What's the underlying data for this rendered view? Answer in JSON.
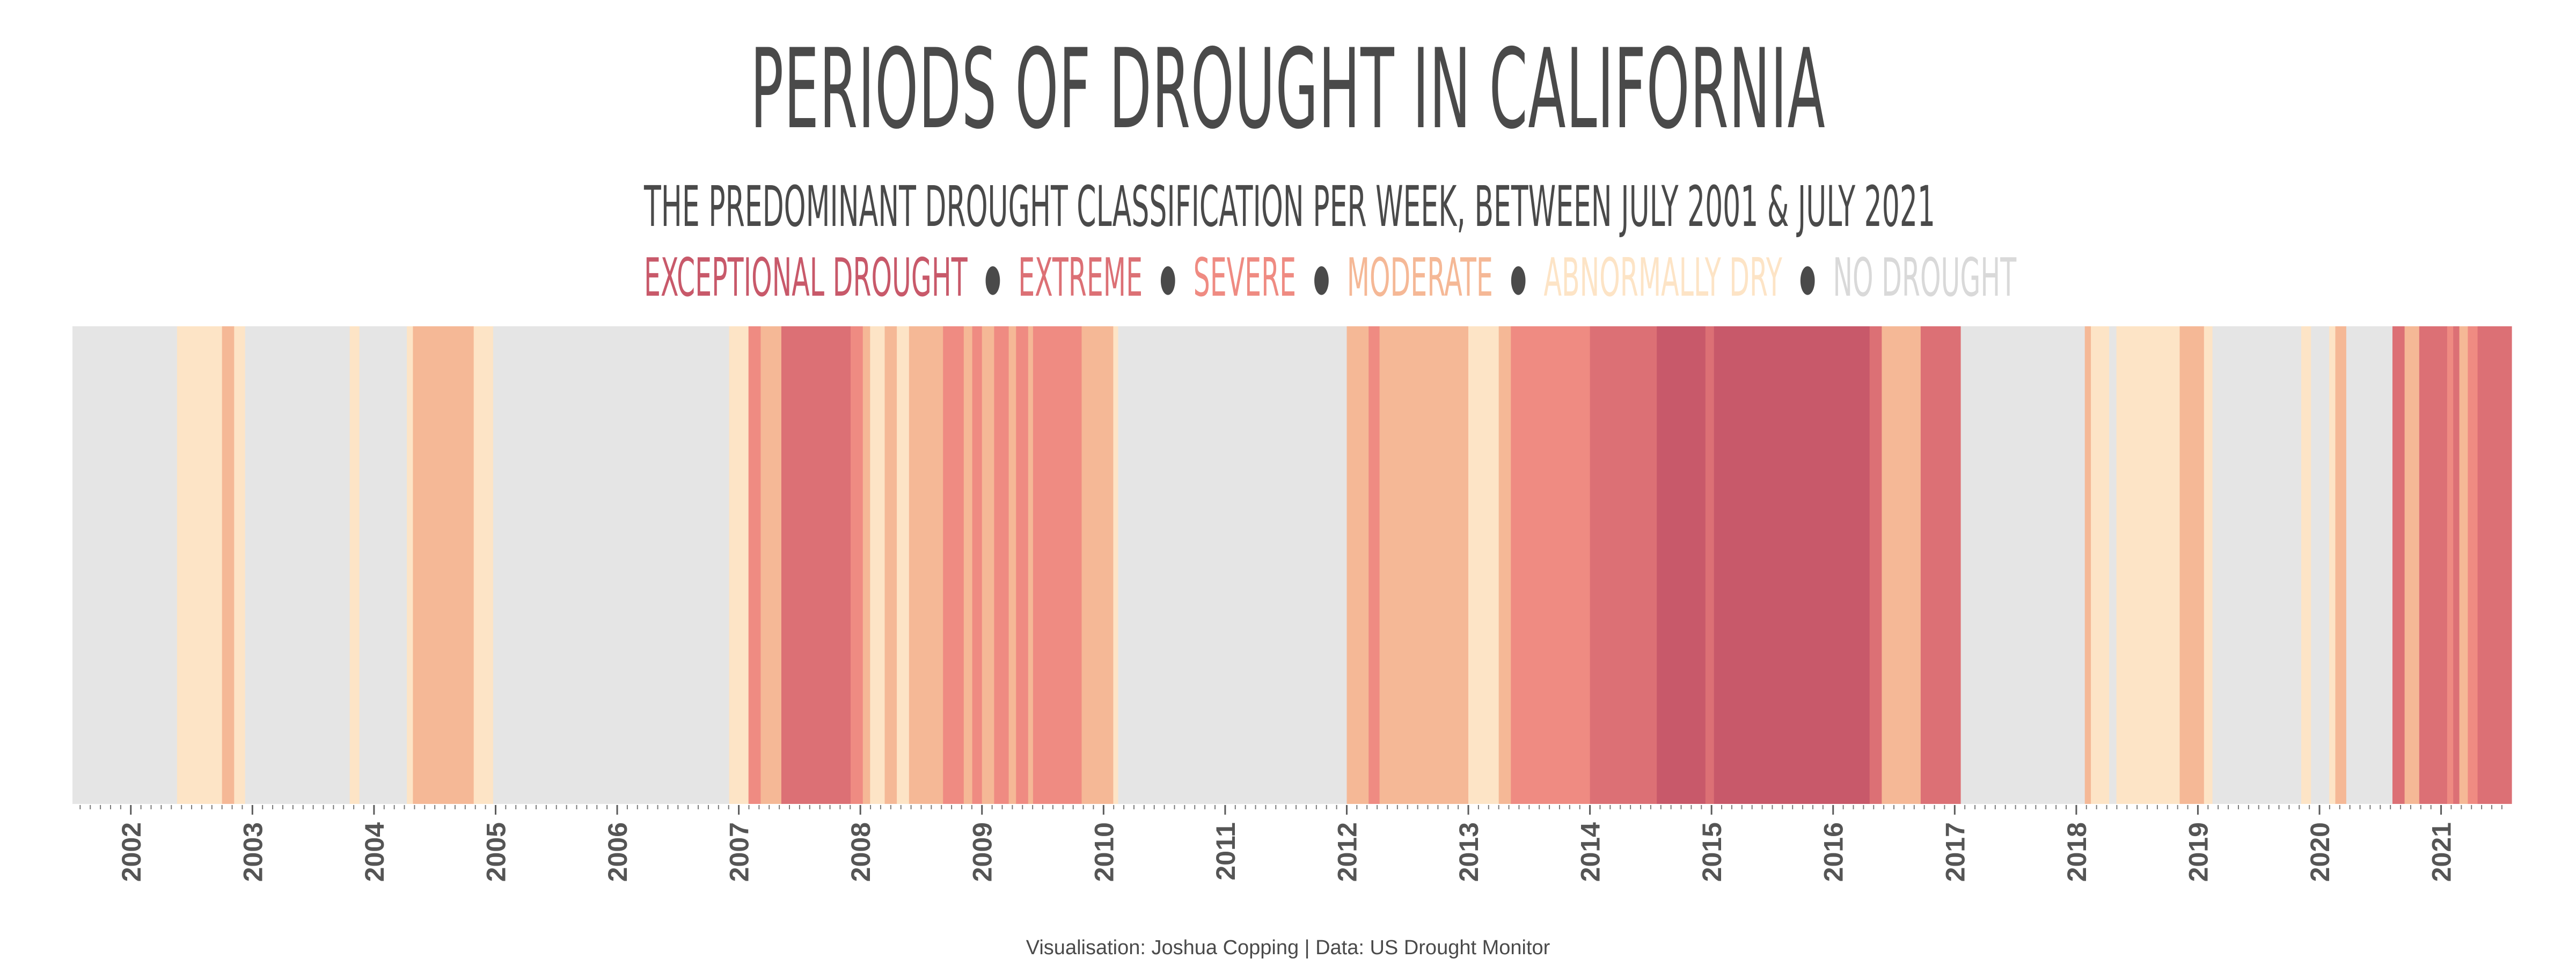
{
  "colors": {
    "exceptional": "#c8596a",
    "extreme": "#dc7075",
    "severe": "#ef8b82",
    "moderate": "#f5b896",
    "abnormally_dry": "#fde4c6",
    "no_drought": "#e5e5e5",
    "text": "#4a4a4a"
  },
  "chart_data": {
    "type": "heatmap",
    "title": "PERIODS OF DROUGHT IN CALIFORNIA",
    "subtitle": "THE PREDOMINANT DROUGHT CLASSIFICATION PER WEEK, BETWEEN JULY 2001 & JULY 2021",
    "legend": [
      {
        "key": "exceptional",
        "label": "EXCEPTIONAL DROUGHT"
      },
      {
        "key": "extreme",
        "label": "EXTREME"
      },
      {
        "key": "severe",
        "label": "SEVERE"
      },
      {
        "key": "moderate",
        "label": "MODERATE"
      },
      {
        "key": "abnormally_dry",
        "label": "ABNORMALLY DRY"
      },
      {
        "key": "no_drought",
        "label": "NO DROUGHT"
      }
    ],
    "legend_position": "top",
    "x_range": [
      "2001-07",
      "2021-07"
    ],
    "x_ticks": [
      "2002",
      "2003",
      "2004",
      "2005",
      "2006",
      "2007",
      "2008",
      "2009",
      "2010",
      "2011",
      "2012",
      "2013",
      "2014",
      "2015",
      "2016",
      "2017",
      "2018",
      "2019",
      "2020",
      "2021"
    ],
    "periods": [
      {
        "start": 2001.52,
        "end": 2002.38,
        "cls": "no_drought"
      },
      {
        "start": 2002.38,
        "end": 2002.75,
        "cls": "abnormally_dry"
      },
      {
        "start": 2002.75,
        "end": 2002.85,
        "cls": "moderate"
      },
      {
        "start": 2002.85,
        "end": 2002.94,
        "cls": "abnormally_dry"
      },
      {
        "start": 2002.94,
        "end": 2003.8,
        "cls": "no_drought"
      },
      {
        "start": 2003.8,
        "end": 2003.88,
        "cls": "abnormally_dry"
      },
      {
        "start": 2003.88,
        "end": 2004.27,
        "cls": "no_drought"
      },
      {
        "start": 2004.27,
        "end": 2004.32,
        "cls": "abnormally_dry"
      },
      {
        "start": 2004.32,
        "end": 2004.82,
        "cls": "moderate"
      },
      {
        "start": 2004.82,
        "end": 2004.98,
        "cls": "abnormally_dry"
      },
      {
        "start": 2004.98,
        "end": 2006.92,
        "cls": "no_drought"
      },
      {
        "start": 2006.92,
        "end": 2007.08,
        "cls": "abnormally_dry"
      },
      {
        "start": 2007.08,
        "end": 2007.18,
        "cls": "severe"
      },
      {
        "start": 2007.18,
        "end": 2007.35,
        "cls": "moderate"
      },
      {
        "start": 2007.35,
        "end": 2007.92,
        "cls": "extreme"
      },
      {
        "start": 2007.92,
        "end": 2008.02,
        "cls": "severe"
      },
      {
        "start": 2008.02,
        "end": 2008.08,
        "cls": "moderate"
      },
      {
        "start": 2008.08,
        "end": 2008.2,
        "cls": "abnormally_dry"
      },
      {
        "start": 2008.2,
        "end": 2008.3,
        "cls": "moderate"
      },
      {
        "start": 2008.3,
        "end": 2008.4,
        "cls": "abnormally_dry"
      },
      {
        "start": 2008.4,
        "end": 2008.68,
        "cls": "moderate"
      },
      {
        "start": 2008.68,
        "end": 2008.85,
        "cls": "severe"
      },
      {
        "start": 2008.85,
        "end": 2008.92,
        "cls": "moderate"
      },
      {
        "start": 2008.92,
        "end": 2009.0,
        "cls": "severe"
      },
      {
        "start": 2009.0,
        "end": 2009.1,
        "cls": "moderate"
      },
      {
        "start": 2009.1,
        "end": 2009.22,
        "cls": "severe"
      },
      {
        "start": 2009.22,
        "end": 2009.28,
        "cls": "moderate"
      },
      {
        "start": 2009.28,
        "end": 2009.38,
        "cls": "severe"
      },
      {
        "start": 2009.38,
        "end": 2009.42,
        "cls": "moderate"
      },
      {
        "start": 2009.42,
        "end": 2009.82,
        "cls": "severe"
      },
      {
        "start": 2009.82,
        "end": 2010.08,
        "cls": "moderate"
      },
      {
        "start": 2010.08,
        "end": 2010.12,
        "cls": "abnormally_dry"
      },
      {
        "start": 2010.12,
        "end": 2012.0,
        "cls": "no_drought"
      },
      {
        "start": 2012.0,
        "end": 2012.18,
        "cls": "moderate"
      },
      {
        "start": 2012.18,
        "end": 2012.27,
        "cls": "severe"
      },
      {
        "start": 2012.27,
        "end": 2013.0,
        "cls": "moderate"
      },
      {
        "start": 2013.0,
        "end": 2013.1,
        "cls": "abnormally_dry"
      },
      {
        "start": 2013.1,
        "end": 2013.25,
        "cls": "abnormally_dry"
      },
      {
        "start": 2013.25,
        "end": 2013.35,
        "cls": "moderate"
      },
      {
        "start": 2013.35,
        "end": 2014.0,
        "cls": "severe"
      },
      {
        "start": 2014.0,
        "end": 2014.55,
        "cls": "extreme"
      },
      {
        "start": 2014.55,
        "end": 2014.95,
        "cls": "exceptional"
      },
      {
        "start": 2014.95,
        "end": 2015.02,
        "cls": "extreme"
      },
      {
        "start": 2015.02,
        "end": 2016.3,
        "cls": "exceptional"
      },
      {
        "start": 2016.3,
        "end": 2016.4,
        "cls": "extreme"
      },
      {
        "start": 2016.4,
        "end": 2016.72,
        "cls": "moderate"
      },
      {
        "start": 2016.72,
        "end": 2017.05,
        "cls": "extreme"
      },
      {
        "start": 2017.05,
        "end": 2018.07,
        "cls": "no_drought"
      },
      {
        "start": 2018.07,
        "end": 2018.12,
        "cls": "moderate"
      },
      {
        "start": 2018.12,
        "end": 2018.27,
        "cls": "abnormally_dry"
      },
      {
        "start": 2018.27,
        "end": 2018.33,
        "cls": "no_drought"
      },
      {
        "start": 2018.33,
        "end": 2018.85,
        "cls": "abnormally_dry"
      },
      {
        "start": 2018.85,
        "end": 2019.05,
        "cls": "moderate"
      },
      {
        "start": 2019.05,
        "end": 2019.12,
        "cls": "abnormally_dry"
      },
      {
        "start": 2019.12,
        "end": 2019.85,
        "cls": "no_drought"
      },
      {
        "start": 2019.85,
        "end": 2019.93,
        "cls": "abnormally_dry"
      },
      {
        "start": 2019.93,
        "end": 2020.08,
        "cls": "no_drought"
      },
      {
        "start": 2020.08,
        "end": 2020.13,
        "cls": "abnormally_dry"
      },
      {
        "start": 2020.13,
        "end": 2020.22,
        "cls": "moderate"
      },
      {
        "start": 2020.22,
        "end": 2020.6,
        "cls": "no_drought"
      },
      {
        "start": 2020.6,
        "end": 2020.7,
        "cls": "extreme"
      },
      {
        "start": 2020.7,
        "end": 2020.82,
        "cls": "moderate"
      },
      {
        "start": 2020.82,
        "end": 2021.05,
        "cls": "extreme"
      },
      {
        "start": 2021.05,
        "end": 2021.1,
        "cls": "severe"
      },
      {
        "start": 2021.1,
        "end": 2021.15,
        "cls": "extreme"
      },
      {
        "start": 2021.15,
        "end": 2021.22,
        "cls": "moderate"
      },
      {
        "start": 2021.22,
        "end": 2021.3,
        "cls": "severe"
      },
      {
        "start": 2021.3,
        "end": 2021.58,
        "cls": "extreme"
      }
    ]
  },
  "footer": {
    "caption": "Visualisation: Joshua Copping | Data: US Drought Monitor"
  }
}
